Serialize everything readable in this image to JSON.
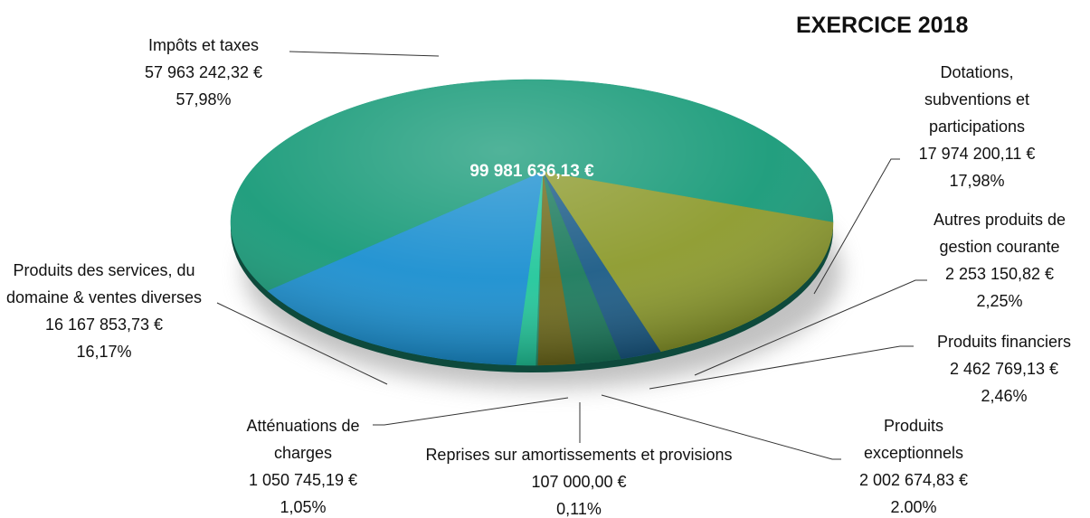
{
  "chart_data": {
    "type": "pie",
    "title": "EXERCICE 2018",
    "total": {
      "value": 99981636.13,
      "label": "99 981 636,13 €"
    },
    "categories": [
      "Impôts et taxes",
      "Dotations, subventions et participations",
      "Autres produits de gestion courante",
      "Produits financiers",
      "Produits exceptionnels",
      "Reprises sur amortissements et provisions",
      "Atténuations de charges",
      "Produits des services, du domaine & ventes diverses"
    ],
    "values": [
      57963242.32,
      17974200.11,
      2253150.82,
      2462769.13,
      2002674.83,
      107000.0,
      1050745.19,
      16167853.73
    ],
    "value_labels": [
      "57 963 242,32 €",
      "17 974 200,11 €",
      "2 253 150,82 €",
      "2 462 769,13 €",
      "2 002 674,83 €",
      "107 000,00 €",
      "1 050 745,19 €",
      "16 167 853,73 €"
    ],
    "percent_labels": [
      "57,98%",
      "17,98%",
      "2,25%",
      "2,46%",
      "2.00%",
      "0,11%",
      "1,05%",
      "16,17%"
    ],
    "colors": [
      "#179a78",
      "#8c9a2c",
      "#1b5b86",
      "#1b7a5c",
      "#6e6a1c",
      "#2a8e6c",
      "#22c79b",
      "#1a8fd0"
    ]
  }
}
